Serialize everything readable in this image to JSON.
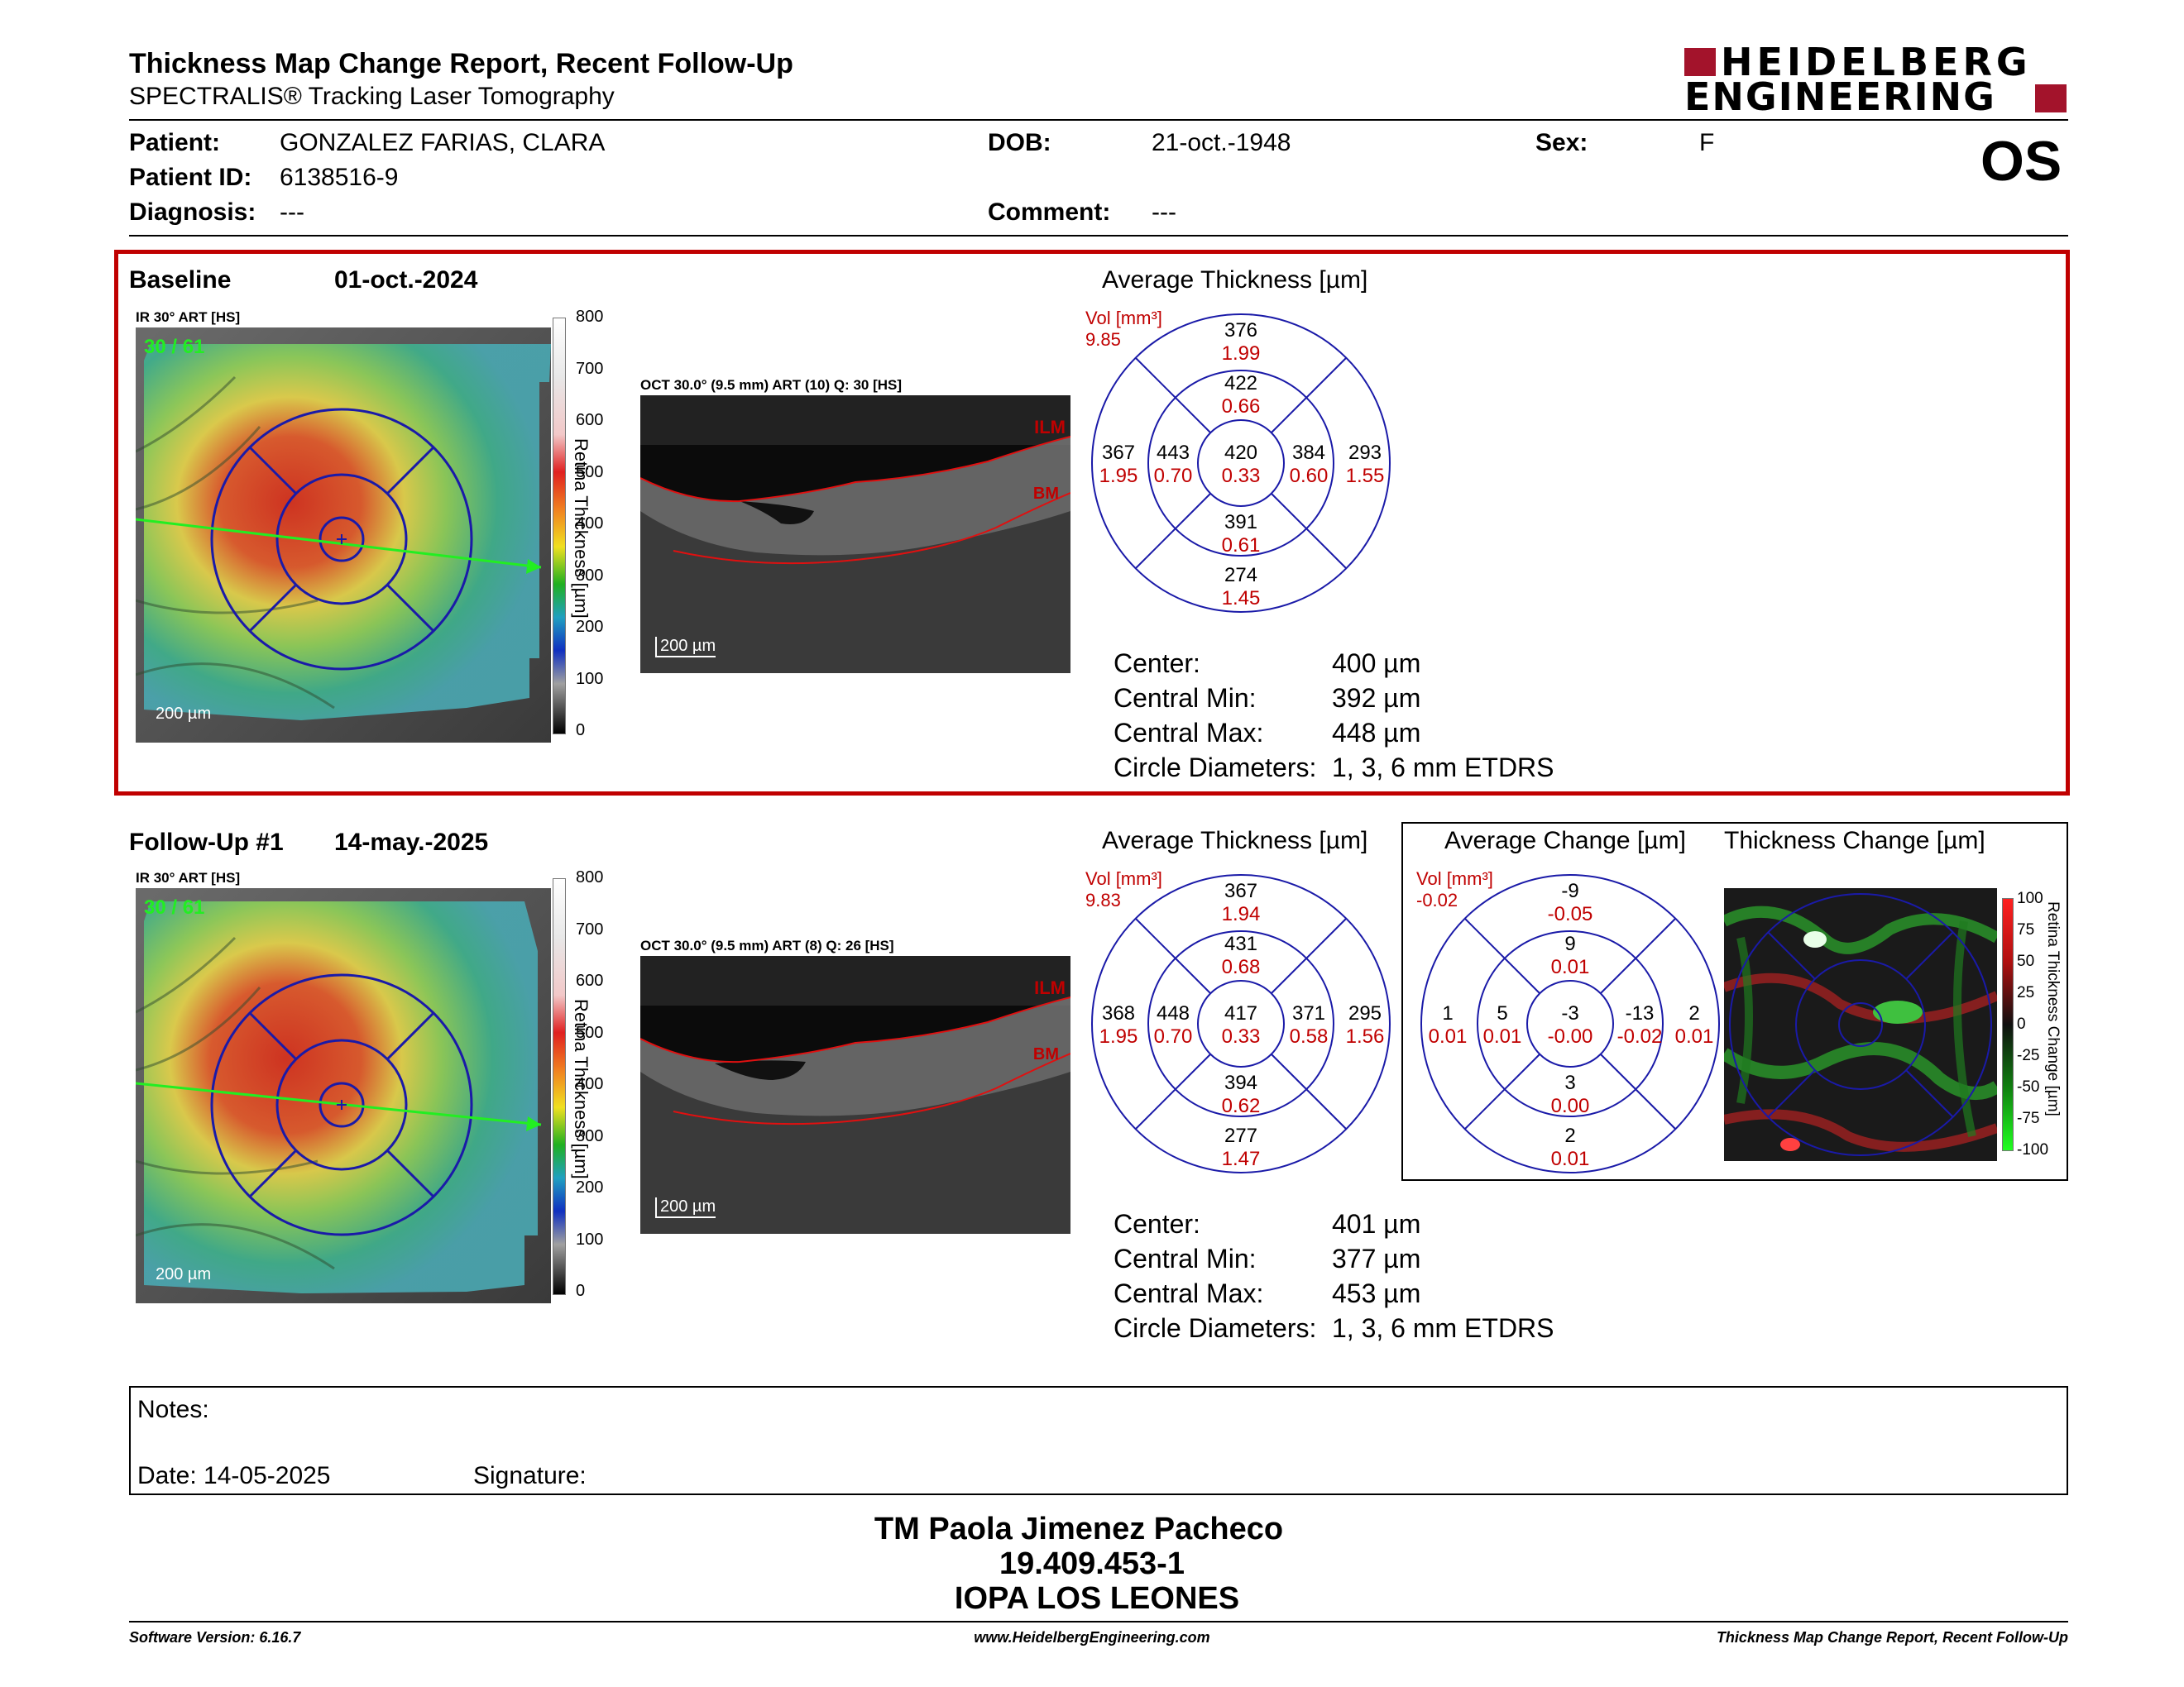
{
  "header": {
    "title": "Thickness Map Change Report, Recent Follow-Up",
    "subtitle": "SPECTRALIS® Tracking Laser Tomography",
    "brand_line1": "HEIDELBERG",
    "brand_line2": "ENGINEERING",
    "eye": "OS"
  },
  "patient": {
    "patient_label": "Patient:",
    "patient_value": "GONZALEZ FARIAS, CLARA",
    "id_label": "Patient ID:",
    "id_value": "6138516-9",
    "diagnosis_label": "Diagnosis:",
    "diagnosis_value": "---",
    "dob_label": "DOB:",
    "dob_value": "21-oct.-1948",
    "comment_label": "Comment:",
    "comment_value": "---",
    "sex_label": "Sex:",
    "sex_value": "F"
  },
  "baseline": {
    "label": "Baseline",
    "date": "01-oct.-2024",
    "ir_label": "IR 30° ART [HS]",
    "ir_count": "30 / 61",
    "ir_scale": "200 µm",
    "oct_label": "OCT 30.0° (9.5 mm) ART (10) Q: 30 [HS]",
    "oct_scale": "200 µm",
    "ilm": "ILM",
    "bm": "BM",
    "colorbar_label": "Retina Thickness [µm]",
    "colorbar_ticks": [
      "800",
      "700",
      "600",
      "500",
      "400",
      "300",
      "200",
      "100",
      "0"
    ],
    "avg_title": "Average Thickness [µm]",
    "vol_label": "Vol [mm³]",
    "vol_value": "9.85",
    "sectors": {
      "outer_top": [
        "376",
        "1.99"
      ],
      "inner_top": [
        "422",
        "0.66"
      ],
      "center": [
        "420",
        "0.33"
      ],
      "outer_left": [
        "367",
        "1.95"
      ],
      "inner_left": [
        "443",
        "0.70"
      ],
      "inner_right": [
        "384",
        "0.60"
      ],
      "outer_right": [
        "293",
        "1.55"
      ],
      "inner_bottom": [
        "391",
        "0.61"
      ],
      "outer_bottom": [
        "274",
        "1.45"
      ]
    },
    "metrics": [
      {
        "label": "Center:",
        "value": "400 µm"
      },
      {
        "label": "Central Min:",
        "value": "392 µm"
      },
      {
        "label": "Central Max:",
        "value": "448 µm"
      },
      {
        "label": "Circle Diameters:",
        "value": "1, 3, 6 mm ETDRS"
      }
    ]
  },
  "followup": {
    "label": "Follow-Up #1",
    "date": "14-may.-2025",
    "ir_label": "IR 30° ART [HS]",
    "ir_count": "30 / 61",
    "ir_scale": "200 µm",
    "oct_label": "OCT 30.0° (9.5 mm) ART (8) Q: 26 [HS]",
    "oct_scale": "200 µm",
    "ilm": "ILM",
    "bm": "BM",
    "colorbar_label": "Retina Thickness [µm]",
    "colorbar_ticks": [
      "800",
      "700",
      "600",
      "500",
      "400",
      "300",
      "200",
      "100",
      "0"
    ],
    "avg_title": "Average Thickness [µm]",
    "vol_label": "Vol [mm³]",
    "vol_value": "9.83",
    "sectors": {
      "outer_top": [
        "367",
        "1.94"
      ],
      "inner_top": [
        "431",
        "0.68"
      ],
      "center": [
        "417",
        "0.33"
      ],
      "outer_left": [
        "368",
        "1.95"
      ],
      "inner_left": [
        "448",
        "0.70"
      ],
      "inner_right": [
        "371",
        "0.58"
      ],
      "outer_right": [
        "295",
        "1.56"
      ],
      "inner_bottom": [
        "394",
        "0.62"
      ],
      "outer_bottom": [
        "277",
        "1.47"
      ]
    },
    "metrics": [
      {
        "label": "Center:",
        "value": "401 µm"
      },
      {
        "label": "Central Min:",
        "value": "377 µm"
      },
      {
        "label": "Central Max:",
        "value": "453 µm"
      },
      {
        "label": "Circle Diameters:",
        "value": "1, 3, 6 mm ETDRS"
      }
    ],
    "change_title": "Average Change [µm]",
    "change_vol_label": "Vol [mm³]",
    "change_vol_value": "-0.02",
    "change_sectors": {
      "outer_top": [
        "-9",
        "-0.05"
      ],
      "inner_top": [
        "9",
        "0.01"
      ],
      "center": [
        "-3",
        "-0.00"
      ],
      "outer_left": [
        "1",
        "0.01"
      ],
      "inner_left": [
        "5",
        "0.01"
      ],
      "inner_right": [
        "-13",
        "-0.02"
      ],
      "outer_right": [
        "2",
        "0.01"
      ],
      "inner_bottom": [
        "3",
        "0.00"
      ],
      "outer_bottom": [
        "2",
        "0.01"
      ]
    },
    "thickness_change_title": "Thickness Change [µm]",
    "change_bar_label": "Retina Thickness Change [µm]",
    "change_ticks": [
      "100",
      "75",
      "50",
      "25",
      "0",
      "-25",
      "-50",
      "-75",
      "-100"
    ]
  },
  "notes": {
    "notes_label": "Notes:",
    "date_label": "Date: 14-05-2025",
    "signature_label": "Signature:"
  },
  "signer": {
    "name": "TM Paola Jimenez Pacheco",
    "rut": "19.409.453-1",
    "org": "IOPA LOS LEONES"
  },
  "footer": {
    "version": "Software Version: 6.16.7",
    "website": "www.HeidelbergEngineering.com",
    "report": "Thickness Map Change Report, Recent Follow-Up"
  },
  "colors": {
    "accent_red": "#c00000",
    "grid_blue": "#1a1aa8",
    "brand_red": "#a3132b"
  }
}
